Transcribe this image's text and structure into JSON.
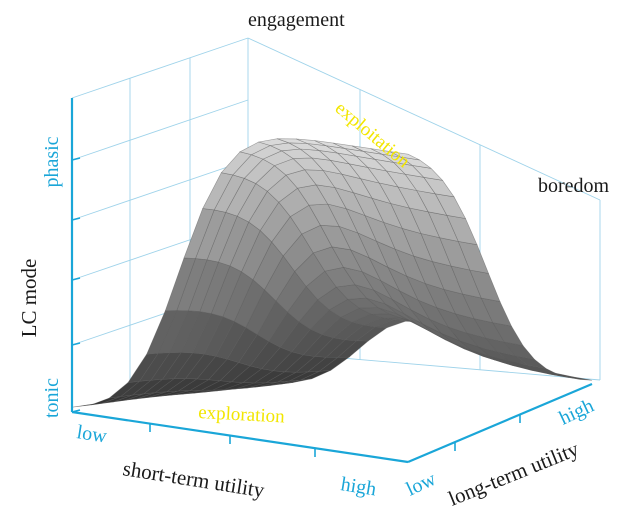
{
  "labels": {
    "engagement": "engagement",
    "boredom": "boredom",
    "exploitation": "exploitation",
    "exploration": "exploration",
    "z_axis": "LC mode",
    "z_high": "phasic",
    "z_low": "tonic",
    "x_axis": "short-term utility",
    "x_low": "low",
    "x_high": "high",
    "y_axis": "long-term utility",
    "y_low": "low",
    "y_high": "high"
  },
  "colors": {
    "axis": "#1aa6d8",
    "annotation": "#f2e600",
    "surface_low": "#2e2e2e",
    "surface_high": "#e4e4e4"
  }
}
